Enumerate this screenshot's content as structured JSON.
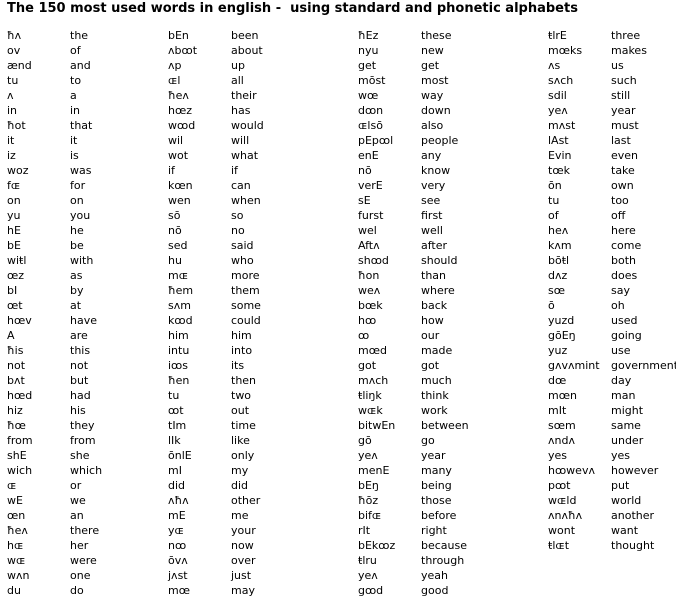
{
  "header": {
    "title": "The 150 most used words in english -  using standard and phonetic alphabets"
  },
  "columns": [
    {
      "phonetic": [
        "ħʌ",
        "ov",
        "ænd",
        "tu",
        "ʌ",
        "in",
        "ħot",
        "it",
        "iz",
        "woz",
        "fɶ",
        "on",
        "yu",
        "hE",
        "bE",
        "wiŧl",
        "œz",
        "bI",
        "œt",
        "hœv",
        "A",
        "ħis",
        "not",
        "bʌt",
        "hœd",
        "hiz",
        "ħœ",
        "from",
        "shE",
        "wich",
        "ɶ",
        "wE",
        "œn",
        "ħeʌ",
        "hɶ",
        "wɶ",
        "wʌn",
        "du"
      ],
      "standard": [
        "the",
        "of",
        "and",
        "to",
        "a",
        "in",
        "that",
        "it",
        "is",
        "was",
        "for",
        "on",
        "you",
        "he",
        "be",
        "with",
        "as",
        "by",
        "at",
        "have",
        "are",
        "this",
        "not",
        "but",
        "had",
        "his",
        "they",
        "from",
        "she",
        "which",
        "or",
        "we",
        "an",
        "there",
        "her",
        "were",
        "one",
        "do"
      ]
    },
    {
      "phonetic": [
        "bEn",
        "ʌbꝏt",
        "ʌp",
        "ɶl",
        "ħeʌ",
        "hœz",
        "wꝏd",
        "wil",
        "wot",
        "if",
        "kœn",
        "wen",
        "sō",
        "nō",
        "sed",
        "hu",
        "mɶ",
        "ħem",
        "sʌm",
        "kꝏd",
        "him",
        "intu",
        "iꝏs",
        "ħen",
        "tu",
        "ꝏt",
        "tIm",
        "lIk",
        "ōnlE",
        "mI",
        "did",
        "ʌħʌ",
        "mE",
        "yɶ",
        "nꝏ",
        "ōvʌ",
        "jʌst",
        "mœ"
      ],
      "standard": [
        "been",
        "about",
        "up",
        "all",
        "their",
        "has",
        "would",
        "will",
        "what",
        "if",
        "can",
        "when",
        "so",
        "no",
        "said",
        "who",
        "more",
        "them",
        "some",
        "could",
        "him",
        "into",
        "its",
        "then",
        "two",
        "out",
        "time",
        "like",
        "only",
        "my",
        "did",
        "other",
        "me",
        "your",
        "now",
        "over",
        "just",
        "may"
      ]
    },
    {
      "phonetic": [
        "ħEz",
        "nyu",
        "get",
        "mōst",
        "wœ",
        "dꝏn",
        "ɶlsō",
        "pEpꝏl",
        "enE",
        "nō",
        "verE",
        "sE",
        "furst",
        "wel",
        "Aftʌ",
        "shꝏd",
        "ħon",
        "weʌ",
        "bœk",
        "hꝏ",
        "ꝏ",
        "mœd",
        "got",
        "mʌch",
        "ŧliŋk",
        "wɶk",
        "bitwEn",
        "gō",
        "yeʌ",
        "menE",
        "bEŋ",
        "ħōz",
        "bifɶ",
        "rIt",
        "bEkꝏz",
        "ŧlru",
        "yeʌ",
        "gꝏd"
      ],
      "standard": [
        "these",
        "new",
        "get",
        "most",
        "way",
        "down",
        "also",
        "people",
        "any",
        "know",
        "very",
        "see",
        "first",
        "well",
        "after",
        "should",
        "than",
        "where",
        "back",
        "how",
        "our",
        "made",
        "got",
        "much",
        "think",
        "work",
        "between",
        "go",
        "year",
        "many",
        "being",
        "those",
        "before",
        "right",
        "because",
        "through",
        "yeah",
        "good"
      ]
    },
    {
      "phonetic": [
        "ŧlrE",
        "mœks",
        "ʌs",
        "sʌch",
        "sdil",
        "yeʌ",
        "mʌst",
        "lAst",
        "Evin",
        "tœk",
        "ōn",
        "tu",
        "of",
        "heʌ",
        "kʌm",
        "bōŧl",
        "dʌz",
        "sœ",
        "ō",
        "yuzd",
        "gōEŋ",
        "yuz",
        "gʌvʌmint",
        "dœ",
        "mœn",
        "mIt",
        "sœm",
        "ʌndʌ",
        "yes",
        "hꝏwevʌ",
        "pꝏt",
        "wɶld",
        "ʌnʌħʌ",
        "wont",
        "ŧlɶt"
      ],
      "standard": [
        "three",
        "makes",
        "us",
        "such",
        "still",
        "year",
        "must",
        "last",
        "even",
        "take",
        "own",
        "too",
        "off",
        "here",
        "come",
        "both",
        "does",
        "say",
        "oh",
        "used",
        "going",
        "use",
        "government",
        "day",
        "man",
        "might",
        "same",
        "under",
        "yes",
        "however",
        "put",
        "world",
        "another",
        "want",
        "thought"
      ]
    }
  ]
}
